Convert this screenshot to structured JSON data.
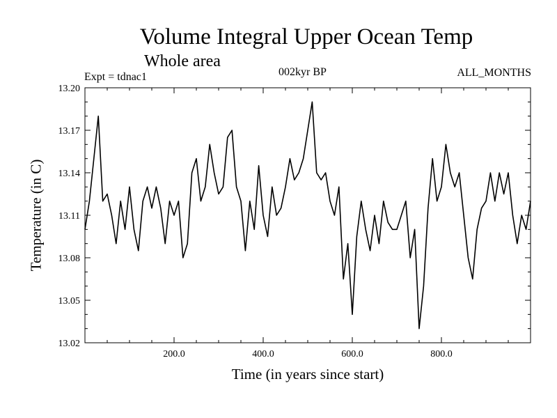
{
  "chart_data": {
    "type": "line",
    "title": "Volume Integral Upper Ocean Temp",
    "subtitle": "Whole area",
    "annotations": {
      "experiment": "Expt = tdnac1",
      "period": "002kyr BP",
      "months": "ALL_MONTHS"
    },
    "xlabel": "Time (in years since start)",
    "ylabel": "Temperature (in C)",
    "xlim": [
      0,
      1000
    ],
    "ylim": [
      13.02,
      13.2
    ],
    "x_ticks": [
      200,
      400,
      600,
      800
    ],
    "x_tick_labels": [
      "200.0",
      "400.0",
      "600.0",
      "800.0"
    ],
    "y_ticks": [
      13.02,
      13.05,
      13.08,
      13.11,
      13.14,
      13.17,
      13.2
    ],
    "y_tick_labels": [
      "13.02",
      "13.05",
      "13.08",
      "13.11",
      "13.14",
      "13.17",
      "13.20"
    ],
    "grid": false,
    "series": [
      {
        "name": "Temperature",
        "color": "#000000",
        "x": [
          0,
          10,
          20,
          30,
          40,
          50,
          60,
          70,
          80,
          90,
          100,
          110,
          120,
          130,
          140,
          150,
          160,
          170,
          180,
          190,
          200,
          210,
          220,
          230,
          240,
          250,
          260,
          270,
          280,
          290,
          300,
          310,
          320,
          330,
          340,
          350,
          360,
          370,
          380,
          390,
          400,
          410,
          420,
          430,
          440,
          450,
          460,
          470,
          480,
          490,
          500,
          510,
          520,
          530,
          540,
          550,
          560,
          570,
          580,
          590,
          600,
          610,
          620,
          630,
          640,
          650,
          660,
          670,
          680,
          690,
          700,
          710,
          720,
          730,
          740,
          750,
          760,
          770,
          780,
          790,
          800,
          810,
          820,
          830,
          840,
          850,
          860,
          870,
          880,
          890,
          900,
          910,
          920,
          930,
          940,
          950,
          960,
          970,
          980,
          990,
          1000
        ],
        "values": [
          13.1,
          13.12,
          13.15,
          13.18,
          13.12,
          13.125,
          13.11,
          13.09,
          13.12,
          13.1,
          13.13,
          13.1,
          13.085,
          13.12,
          13.13,
          13.115,
          13.13,
          13.115,
          13.09,
          13.12,
          13.11,
          13.12,
          13.08,
          13.09,
          13.14,
          13.15,
          13.12,
          13.13,
          13.16,
          13.14,
          13.125,
          13.13,
          13.165,
          13.17,
          13.13,
          13.12,
          13.085,
          13.12,
          13.1,
          13.145,
          13.11,
          13.095,
          13.13,
          13.11,
          13.115,
          13.13,
          13.15,
          13.135,
          13.14,
          13.15,
          13.17,
          13.19,
          13.14,
          13.135,
          13.14,
          13.12,
          13.11,
          13.13,
          13.065,
          13.09,
          13.04,
          13.095,
          13.12,
          13.1,
          13.085,
          13.11,
          13.09,
          13.12,
          13.105,
          13.1,
          13.1,
          13.11,
          13.12,
          13.08,
          13.1,
          13.03,
          13.06,
          13.115,
          13.15,
          13.12,
          13.13,
          13.16,
          13.14,
          13.13,
          13.14,
          13.11,
          13.08,
          13.065,
          13.1,
          13.115,
          13.12,
          13.14,
          13.12,
          13.14,
          13.125,
          13.14,
          13.11,
          13.09,
          13.11,
          13.1,
          13.12
        ]
      }
    ]
  }
}
